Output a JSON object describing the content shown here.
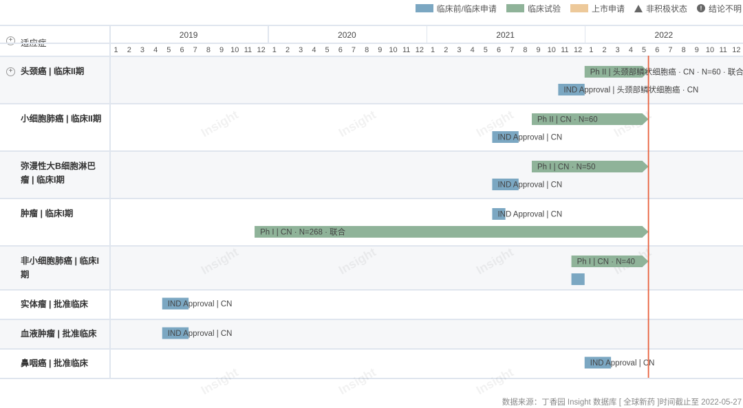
{
  "legend": [
    {
      "label": "临床前/临床申请",
      "color": "#7ba7c2",
      "kind": "swatch"
    },
    {
      "label": "临床试验",
      "color": "#8fb399",
      "kind": "swatch"
    },
    {
      "label": "上市申请",
      "color": "#edc99a",
      "kind": "swatch"
    },
    {
      "label": "非积极状态",
      "kind": "triangle"
    },
    {
      "label": "结论不明",
      "kind": "info"
    }
  ],
  "header": {
    "column_title": "适应症",
    "years": [
      "2019",
      "2020",
      "2021",
      "2022"
    ],
    "months": [
      "1",
      "2",
      "3",
      "4",
      "5",
      "6",
      "7",
      "8",
      "9",
      "10",
      "11",
      "12"
    ]
  },
  "chart_data": {
    "type": "timeline",
    "x_range": [
      "2019-01",
      "2022-12"
    ],
    "today": "2022-05-27",
    "rows": [
      {
        "label": "头颈癌 | 临床II期",
        "expandable": true,
        "bars": [
          {
            "phase": "临床试验",
            "start": "2022-01",
            "end": "2022-05-27",
            "arrow": true,
            "label": "Ph II | 头颈部鳞状细胞癌 · CN · N=60 · 联合"
          },
          {
            "phase": "临床前/临床申请",
            "start": "2021-11",
            "end": "2022-01",
            "arrow": false,
            "label": "IND Approval | 头颈部鳞状细胞癌 · CN"
          }
        ]
      },
      {
        "label": "小细胞肺癌 | 临床II期",
        "bars": [
          {
            "phase": "临床试验",
            "start": "2021-09",
            "end": "2022-05-27",
            "arrow": true,
            "label": "Ph II | CN · N=60"
          },
          {
            "phase": "临床前/临床申请",
            "start": "2021-06",
            "end": "2021-08",
            "arrow": false,
            "label": "IND Approval | CN"
          }
        ]
      },
      {
        "label": "弥漫性大B细胞淋巴瘤 | 临床I期",
        "bars": [
          {
            "phase": "临床试验",
            "start": "2021-09",
            "end": "2022-05-27",
            "arrow": true,
            "label": "Ph I | CN · N=50"
          },
          {
            "phase": "临床前/临床申请",
            "start": "2021-06",
            "end": "2021-08",
            "arrow": false,
            "label": "IND Approval | CN"
          }
        ]
      },
      {
        "label": "肿瘤 | 临床I期",
        "bars": [
          {
            "phase": "临床前/临床申请",
            "start": "2021-06",
            "end": "2021-07",
            "arrow": false,
            "label": "IND Approval | CN"
          },
          {
            "phase": "临床试验",
            "start": "2019-12",
            "end": "2022-05-27",
            "arrow": true,
            "label": "Ph I | CN · N=268 · 联合"
          }
        ]
      },
      {
        "label": "非小细胞肺癌 | 临床I期",
        "bars": [
          {
            "phase": "临床试验",
            "start": "2021-12",
            "end": "2022-05-27",
            "arrow": true,
            "label": "Ph I | CN · N=40"
          },
          {
            "phase": "临床前/临床申请",
            "start": "2021-12",
            "end": "2022-01",
            "arrow": false,
            "label": ""
          }
        ]
      },
      {
        "label": "实体瘤 | 批准临床",
        "bars": [
          {
            "phase": "临床前/临床申请",
            "start": "2019-05",
            "end": "2019-07",
            "arrow": false,
            "label": "IND Approval | CN"
          }
        ]
      },
      {
        "label": "血液肿瘤 | 批准临床",
        "bars": [
          {
            "phase": "临床前/临床申请",
            "start": "2019-05",
            "end": "2019-07",
            "arrow": false,
            "label": "IND Approval | CN"
          }
        ]
      },
      {
        "label": "鼻咽癌 | 批准临床",
        "bars": [
          {
            "phase": "临床前/临床申请",
            "start": "2022-01",
            "end": "2022-03",
            "arrow": false,
            "label": "IND Approval | CN"
          }
        ]
      }
    ]
  },
  "footer": "数据来源：丁香园 Insight 数据库 [ 全球新药 ]时间截止至 2022-05-27",
  "watermark": "Insight",
  "colors": {
    "preclinical": "#7ba7c2",
    "clinical": "#8fb399",
    "market": "#edc99a",
    "today": "#e8603c"
  }
}
